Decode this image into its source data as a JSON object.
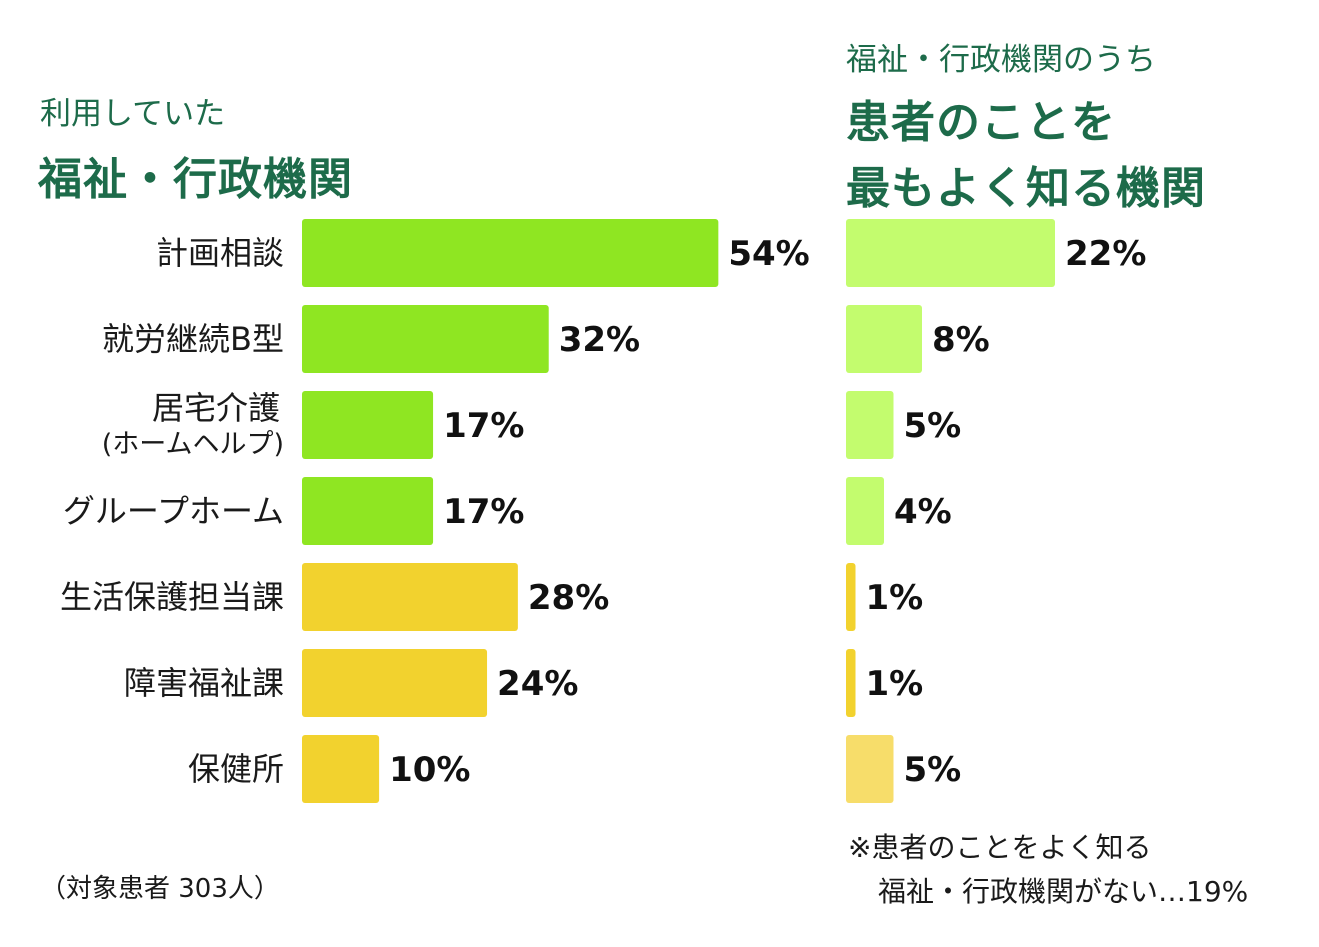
{
  "left_panel": {
    "subtitle": "利用していた",
    "title": "福祉・行政機関"
  },
  "right_panel": {
    "subtitle": "福祉・行政機関のうち",
    "title_line1": "患者のことを",
    "title_line2": "最もよく知る機関"
  },
  "note": "（対象患者 303人）",
  "footnote": {
    "line1": "※患者のことをよく知る",
    "line2": "福祉・行政機関がない…19%"
  },
  "colors": {
    "title_green": "#1d6b4a",
    "welfare_bar": "#8fe622",
    "welfare_bar_light": "#c3fc6e",
    "admin_bar": "#f2d22e",
    "admin_bar_light": "#f7dd6a"
  },
  "chart_data": [
    {
      "type": "bar",
      "orientation": "horizontal",
      "title": "福祉・行政機関",
      "subtitle": "利用していた",
      "categories": [
        "計画相談",
        "就労継続B型",
        "居宅介護(ホームヘルプ)",
        "グループホーム",
        "生活保護担当課",
        "障害福祉課",
        "保健所"
      ],
      "category_lines": [
        [
          "計画相談"
        ],
        [
          "就労継続B型"
        ],
        [
          "居宅介護",
          "(ホームヘルプ)"
        ],
        [
          "グループホーム"
        ],
        [
          "生活保護担当課"
        ],
        [
          "障害福祉課"
        ],
        [
          "保健所"
        ]
      ],
      "values": [
        54,
        32,
        17,
        17,
        28,
        24,
        10
      ],
      "value_labels": [
        "54%",
        "32%",
        "17%",
        "17%",
        "28%",
        "24%",
        "10%"
      ],
      "group": [
        "welfare",
        "welfare",
        "welfare",
        "welfare",
        "admin",
        "admin",
        "admin"
      ],
      "unit": "%"
    },
    {
      "type": "bar",
      "orientation": "horizontal",
      "title": "患者のことを最もよく知る機関",
      "subtitle": "福祉・行政機関のうち",
      "categories": [
        "計画相談",
        "就労継続B型",
        "居宅介護(ホームヘルプ)",
        "グループホーム",
        "生活保護担当課",
        "障害福祉課",
        "保健所"
      ],
      "values": [
        22,
        8,
        5,
        4,
        1,
        1,
        5
      ],
      "value_labels": [
        "22%",
        "8%",
        "5%",
        "4%",
        "1%",
        "1%",
        "5%"
      ],
      "group": [
        "welfare",
        "welfare",
        "welfare",
        "welfare",
        "admin",
        "admin",
        "admin"
      ],
      "unit": "%"
    }
  ]
}
